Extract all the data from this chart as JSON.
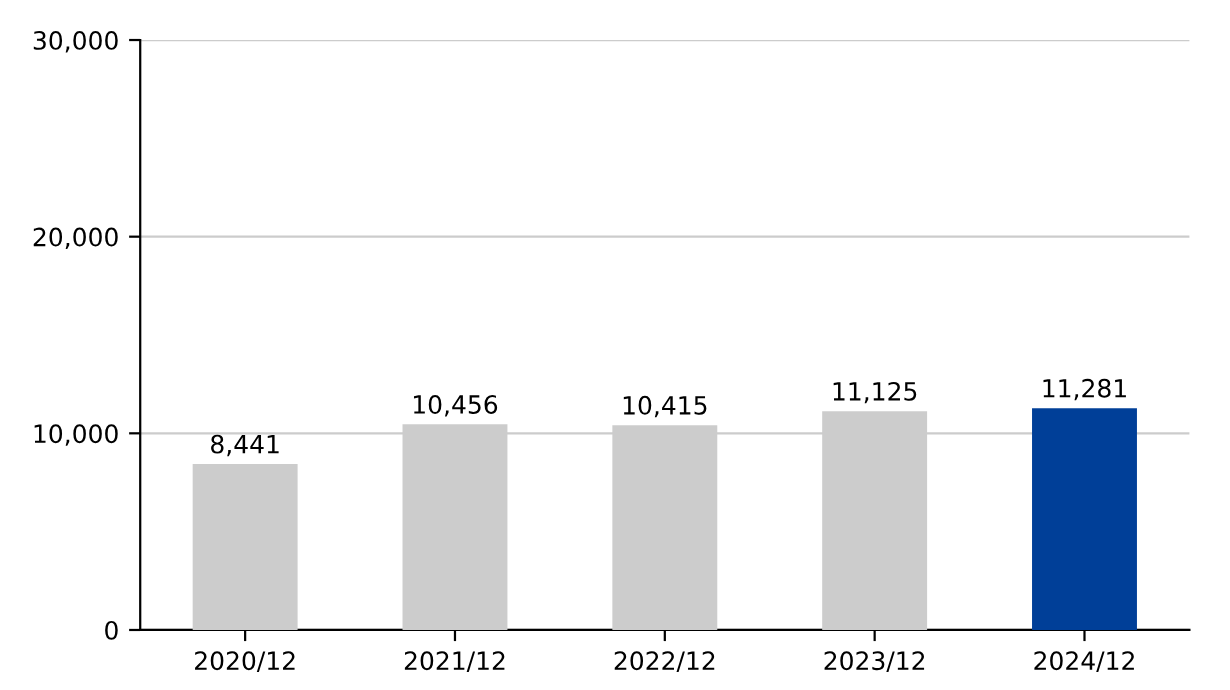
{
  "chart_data": {
    "type": "bar",
    "categories": [
      "2020/12",
      "2021/12",
      "2022/12",
      "2023/12",
      "2024/12"
    ],
    "values": [
      8441,
      10456,
      10415,
      11125,
      11281
    ],
    "colors": [
      "#cccccc",
      "#cccccc",
      "#cccccc",
      "#cccccc",
      "#003f98"
    ],
    "value_labels": [
      "8,441",
      "10,456",
      "10,415",
      "11,125",
      "11,281"
    ],
    "ylim": [
      0,
      30000
    ],
    "yticks": [
      {
        "value": 0,
        "label": "0"
      },
      {
        "value": 10000,
        "label": "10,000"
      },
      {
        "value": 20000,
        "label": "20,000"
      },
      {
        "value": 30000,
        "label": "30,000"
      }
    ],
    "grid": "y",
    "legend": false
  }
}
